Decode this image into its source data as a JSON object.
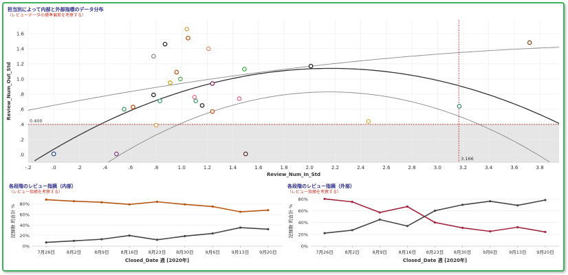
{
  "top": {
    "title": "担当別によって内部と外部指標のデータ分布",
    "subtitle": "（レビューデータの標準偏差を考察する）",
    "ref_h_label": "0.400",
    "ref_v_label": "3.166"
  },
  "bl": {
    "title": "各段階のレビュー指摘（内部）",
    "subtitle": "（レビュー指摘を考察する）"
  },
  "br": {
    "title": "各段階のレビュー指摘（外部）",
    "subtitle": "（レビュー指摘を考察する）"
  },
  "colors": {
    "frame": "#3fae5a",
    "shade": "#e6e6e6",
    "ref_line": "#b22222",
    "trend": "#333333",
    "band": "#888888",
    "orange_line": "#b85410",
    "crimson_line": "#a3233e",
    "dark_line": "#444444"
  },
  "chart_data": [
    {
      "type": "scatter",
      "xlabel": "Review_Num_In_Std",
      "ylabel": "Review_Num_Out_Std",
      "xlim": [
        -0.2,
        3.95
      ],
      "ylim": [
        -0.1,
        1.78
      ],
      "x_ticks": [
        -0.2,
        0.0,
        0.2,
        0.4,
        0.6,
        0.8,
        1.0,
        1.2,
        1.4,
        1.6,
        1.8,
        2.0,
        2.2,
        2.4,
        2.6,
        2.8,
        3.0,
        3.2,
        3.4,
        3.6,
        3.8
      ],
      "x_tick_labels": [
        "-.2",
        ".0",
        ".2",
        ".4",
        ".6",
        ".8",
        "1.0",
        "1.2",
        "1.4",
        "1.6",
        "1.8",
        "2.0",
        "2.2",
        "2.4",
        "2.6",
        "2.8",
        "3.0",
        "3.2",
        "3.4",
        "3.6",
        "3.8"
      ],
      "y_ticks": [
        0.0,
        0.2,
        0.4,
        0.6,
        0.8,
        1.0,
        1.2,
        1.4,
        1.6
      ],
      "y_tick_labels": [
        ".0",
        ".2",
        ".4",
        ".6",
        ".8",
        "1.0",
        "1.2",
        "1.4",
        "1.6"
      ],
      "ref_lines": {
        "y": 0.4,
        "x": 3.166
      },
      "shaded_below_y": 0.4,
      "grid": true,
      "points": [
        {
          "x": 0.0,
          "y": 0.01,
          "color": "#1a2a5a"
        },
        {
          "x": 0.0,
          "y": 0.01,
          "color": "#3a5a9a"
        },
        {
          "x": 0.49,
          "y": 0.01,
          "color": "#8a3a8a"
        },
        {
          "x": 0.55,
          "y": 0.6,
          "color": "#3a9a6a"
        },
        {
          "x": 0.62,
          "y": 0.63,
          "color": "#c0541a"
        },
        {
          "x": 0.78,
          "y": 1.3,
          "color": "#8a8a8a"
        },
        {
          "x": 0.78,
          "y": 0.79,
          "color": "#222222"
        },
        {
          "x": 0.8,
          "y": 0.39,
          "color": "#e0a050"
        },
        {
          "x": 0.83,
          "y": 0.71,
          "color": "#3a9a6a"
        },
        {
          "x": 0.87,
          "y": 1.46,
          "color": "#222222"
        },
        {
          "x": 0.91,
          "y": 0.95,
          "color": "#d4a020"
        },
        {
          "x": 0.96,
          "y": 1.09,
          "color": "#c0541a"
        },
        {
          "x": 0.99,
          "y": 1.0,
          "color": "#5aaa5a"
        },
        {
          "x": 1.04,
          "y": 1.66,
          "color": "#e0a050"
        },
        {
          "x": 1.05,
          "y": 1.54,
          "color": "#b85410"
        },
        {
          "x": 1.1,
          "y": 0.76,
          "color": "#e06a8a"
        },
        {
          "x": 1.11,
          "y": 0.71,
          "color": "#3a9a6a"
        },
        {
          "x": 1.16,
          "y": 0.65,
          "color": "#222222"
        },
        {
          "x": 1.21,
          "y": 1.4,
          "color": "#e09070"
        },
        {
          "x": 1.24,
          "y": 0.94,
          "color": "#8a2a5a"
        },
        {
          "x": 1.24,
          "y": 0.57,
          "color": "#c0541a"
        },
        {
          "x": 1.45,
          "y": 0.74,
          "color": "#e06a8a"
        },
        {
          "x": 1.49,
          "y": 1.13,
          "color": "#3aaa3a"
        },
        {
          "x": 1.5,
          "y": 0.01,
          "color": "#5a2a2a"
        },
        {
          "x": 2.01,
          "y": 1.17,
          "color": "#222222"
        },
        {
          "x": 2.46,
          "y": 0.44,
          "color": "#e0b050"
        },
        {
          "x": 3.17,
          "y": 0.64,
          "color": "#3a8a6a"
        },
        {
          "x": 3.72,
          "y": 1.48,
          "color": "#8a4a1a"
        }
      ],
      "trend": {
        "type": "quadratic",
        "a": -0.228,
        "b": 0.987,
        "c": 0.072
      },
      "upper_band": {
        "type": "quadratic",
        "a": -0.0324,
        "b": 0.3225,
        "c": 0.652
      },
      "lower_band": {
        "type": "quadratic",
        "a": -0.3115,
        "b": 1.3406,
        "c": -0.613
      }
    },
    {
      "type": "line",
      "xlabel": "Closed_Date 週 [2020年]",
      "ylabel": "記録数 的合計 %",
      "categories": [
        "7月26日",
        "8月2日",
        "8月9日",
        "8月16日",
        "8月23日",
        "8月30日",
        "9月6日",
        "9月13日",
        "9月20日"
      ],
      "ylim": [
        0,
        95
      ],
      "y_ticks": [
        0,
        20,
        40,
        60,
        80
      ],
      "y_tick_labels": [
        "0%",
        "20%",
        "40%",
        "60%",
        "80%"
      ],
      "series": [
        {
          "values": [
            88,
            85,
            83,
            79,
            84,
            79,
            75,
            65,
            68
          ],
          "color": "#b85410"
        },
        {
          "values": [
            7,
            10,
            13,
            20,
            12,
            19,
            24,
            35,
            32
          ],
          "color": "#444444"
        }
      ]
    },
    {
      "type": "line",
      "xlabel": "Closed_Date 週 [2020年]",
      "ylabel": "記録数 的合計 %",
      "categories": [
        "7月26日",
        "8月2日",
        "8月9日",
        "8月16日",
        "8月23日",
        "8月30日",
        "9月6日",
        "9月13日",
        "9月20日"
      ],
      "ylim": [
        0,
        85
      ],
      "y_ticks": [
        0,
        20,
        40,
        60,
        80
      ],
      "y_tick_labels": [
        "0%",
        "20%",
        "40%",
        "60%",
        "80%"
      ],
      "series": [
        {
          "values": [
            80,
            75,
            57,
            67,
            40,
            31,
            25,
            32,
            24
          ],
          "color": "#a3233e"
        },
        {
          "values": [
            22,
            27,
            45,
            34,
            60,
            70,
            76,
            69,
            78
          ],
          "color": "#444444"
        }
      ]
    }
  ]
}
